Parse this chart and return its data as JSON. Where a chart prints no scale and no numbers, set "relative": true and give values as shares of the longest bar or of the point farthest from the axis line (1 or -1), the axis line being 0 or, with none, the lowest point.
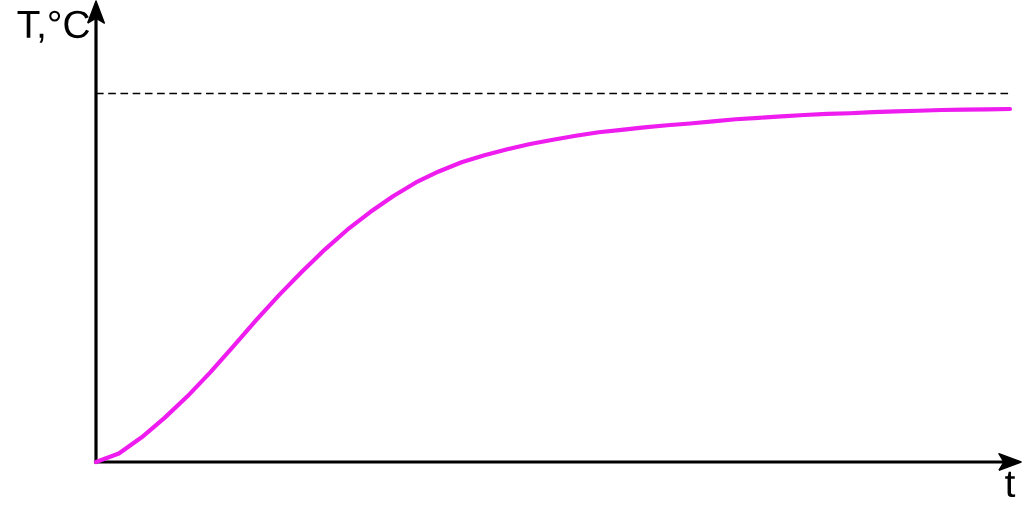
{
  "chart_data": {
    "type": "line",
    "xlabel": "t",
    "ylabel": "T,°C",
    "relative": true,
    "categories": [
      null,
      null,
      null,
      null,
      null,
      null,
      null,
      null,
      null,
      null,
      null,
      null,
      null,
      null,
      null,
      null,
      null,
      null,
      null,
      null,
      null,
      null,
      null,
      null,
      null,
      null,
      null,
      null,
      null,
      null,
      null,
      null,
      null,
      null,
      null,
      null,
      null,
      null,
      null,
      null,
      null
    ],
    "series": [
      {
        "color": "#ee1cee",
        "values": [
          0,
          0.024,
          0.07,
          0.125,
          0.186,
          0.254,
          0.327,
          0.401,
          0.472,
          0.538,
          0.601,
          0.658,
          0.708,
          0.753,
          0.792,
          0.823,
          0.849,
          0.869,
          0.886,
          0.901,
          0.913,
          0.924,
          0.934,
          0.941,
          0.948,
          0.954,
          0.959,
          0.965,
          0.971,
          0.975,
          0.979,
          0.983,
          0.986,
          0.988,
          0.991,
          0.993,
          0.995,
          0.997,
          0.998,
          0.999,
          1.0
        ]
      }
    ],
    "ref_lines": [
      {
        "axis": "y",
        "value": 1.044,
        "color": "#000000",
        "line_style": "dashed"
      }
    ]
  }
}
